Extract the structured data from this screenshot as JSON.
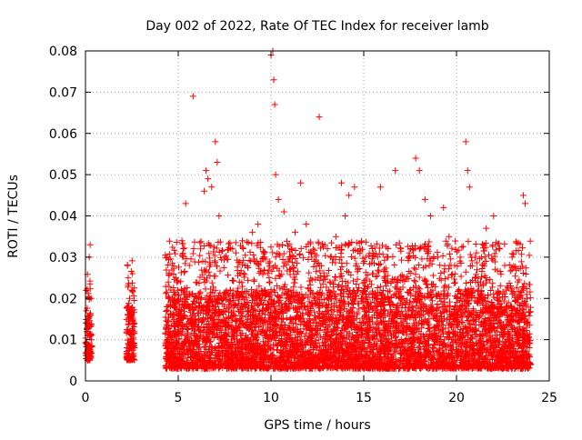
{
  "chart_data": {
    "type": "scatter",
    "title": "Day 002 of 2022, Rate Of TEC Index for receiver lamb",
    "xlabel": "GPS time / hours",
    "ylabel": "ROTI / TECUs",
    "xlim": [
      0,
      25
    ],
    "ylim": [
      0,
      0.08
    ],
    "x_ticks": [
      0,
      5,
      10,
      15,
      20,
      25
    ],
    "y_ticks": [
      0,
      0.01,
      0.02,
      0.03,
      0.04,
      0.05,
      0.06,
      0.07,
      0.08
    ],
    "x_tick_labels": [
      "0",
      "5",
      "10",
      "15",
      "20",
      "25"
    ],
    "y_tick_labels": [
      "0",
      "0.01",
      "0.02",
      "0.03",
      "0.04",
      "0.05",
      "0.06",
      "0.07",
      "0.08"
    ],
    "grid": true,
    "marker": "+",
    "marker_color": "#ff0000",
    "series": [
      {
        "values": [
          [
            0.05,
            0.017
          ],
          [
            0.1,
            0.012
          ],
          [
            0.15,
            0.008
          ],
          [
            0.2,
            0.03
          ],
          [
            0.25,
            0.033
          ],
          [
            0.3,
            0.02
          ],
          [
            0.08,
            0.014
          ],
          [
            0.18,
            0.006
          ],
          [
            2.3,
            0.025
          ],
          [
            2.35,
            0.018
          ],
          [
            2.4,
            0.012
          ],
          [
            2.45,
            0.008
          ],
          [
            2.5,
            0.022
          ],
          [
            2.55,
            0.015
          ],
          [
            2.6,
            0.006
          ],
          [
            2.38,
            0.02
          ],
          [
            4.4,
            0.03
          ],
          [
            4.6,
            0.022
          ],
          [
            4.8,
            0.016
          ],
          [
            5.0,
            0.012
          ],
          [
            5.2,
            0.034
          ],
          [
            5.4,
            0.043
          ],
          [
            5.6,
            0.028
          ],
          [
            5.8,
            0.069
          ],
          [
            6.0,
            0.02
          ],
          [
            6.2,
            0.032
          ],
          [
            6.4,
            0.046
          ],
          [
            6.5,
            0.051
          ],
          [
            6.6,
            0.049
          ],
          [
            6.8,
            0.047
          ],
          [
            7.0,
            0.058
          ],
          [
            7.1,
            0.053
          ],
          [
            7.2,
            0.04
          ],
          [
            7.5,
            0.03
          ],
          [
            7.8,
            0.022
          ],
          [
            8.0,
            0.016
          ],
          [
            8.3,
            0.024
          ],
          [
            8.6,
            0.028
          ],
          [
            9.0,
            0.036
          ],
          [
            9.3,
            0.038
          ],
          [
            9.6,
            0.03
          ],
          [
            9.9,
            0.025
          ],
          [
            10.0,
            0.079
          ],
          [
            10.1,
            0.08
          ],
          [
            10.15,
            0.073
          ],
          [
            10.2,
            0.067
          ],
          [
            10.25,
            0.05
          ],
          [
            10.4,
            0.044
          ],
          [
            10.7,
            0.041
          ],
          [
            11.0,
            0.03
          ],
          [
            11.3,
            0.036
          ],
          [
            11.6,
            0.048
          ],
          [
            11.9,
            0.038
          ],
          [
            12.2,
            0.03
          ],
          [
            12.6,
            0.064
          ],
          [
            12.9,
            0.033
          ],
          [
            13.2,
            0.03
          ],
          [
            13.5,
            0.035
          ],
          [
            13.8,
            0.048
          ],
          [
            14.0,
            0.04
          ],
          [
            14.2,
            0.045
          ],
          [
            14.5,
            0.047
          ],
          [
            14.8,
            0.032
          ],
          [
            15.1,
            0.03
          ],
          [
            15.5,
            0.026
          ],
          [
            15.9,
            0.047
          ],
          [
            16.3,
            0.03
          ],
          [
            16.7,
            0.051
          ],
          [
            17.0,
            0.032
          ],
          [
            17.4,
            0.03
          ],
          [
            17.8,
            0.054
          ],
          [
            18.0,
            0.051
          ],
          [
            18.3,
            0.044
          ],
          [
            18.6,
            0.04
          ],
          [
            19.0,
            0.03
          ],
          [
            19.3,
            0.042
          ],
          [
            19.6,
            0.035
          ],
          [
            19.9,
            0.028
          ],
          [
            20.2,
            0.03
          ],
          [
            20.5,
            0.058
          ],
          [
            20.6,
            0.051
          ],
          [
            20.7,
            0.047
          ],
          [
            21.0,
            0.03
          ],
          [
            21.3,
            0.024
          ],
          [
            21.6,
            0.037
          ],
          [
            22.0,
            0.04
          ],
          [
            22.3,
            0.032
          ],
          [
            22.6,
            0.028
          ],
          [
            23.0,
            0.03
          ],
          [
            23.3,
            0.024
          ],
          [
            23.6,
            0.045
          ],
          [
            23.7,
            0.043
          ],
          [
            23.8,
            0.02
          ]
        ]
      }
    ],
    "band": [
      {
        "x": [
          0.0,
          0.35
        ],
        "low": 0.005,
        "high": 0.016
      },
      {
        "x": [
          2.2,
          2.65
        ],
        "low": 0.005,
        "high": 0.018
      },
      {
        "x": [
          4.3,
          24.0
        ],
        "low": 0.003,
        "high": 0.022
      }
    ]
  }
}
